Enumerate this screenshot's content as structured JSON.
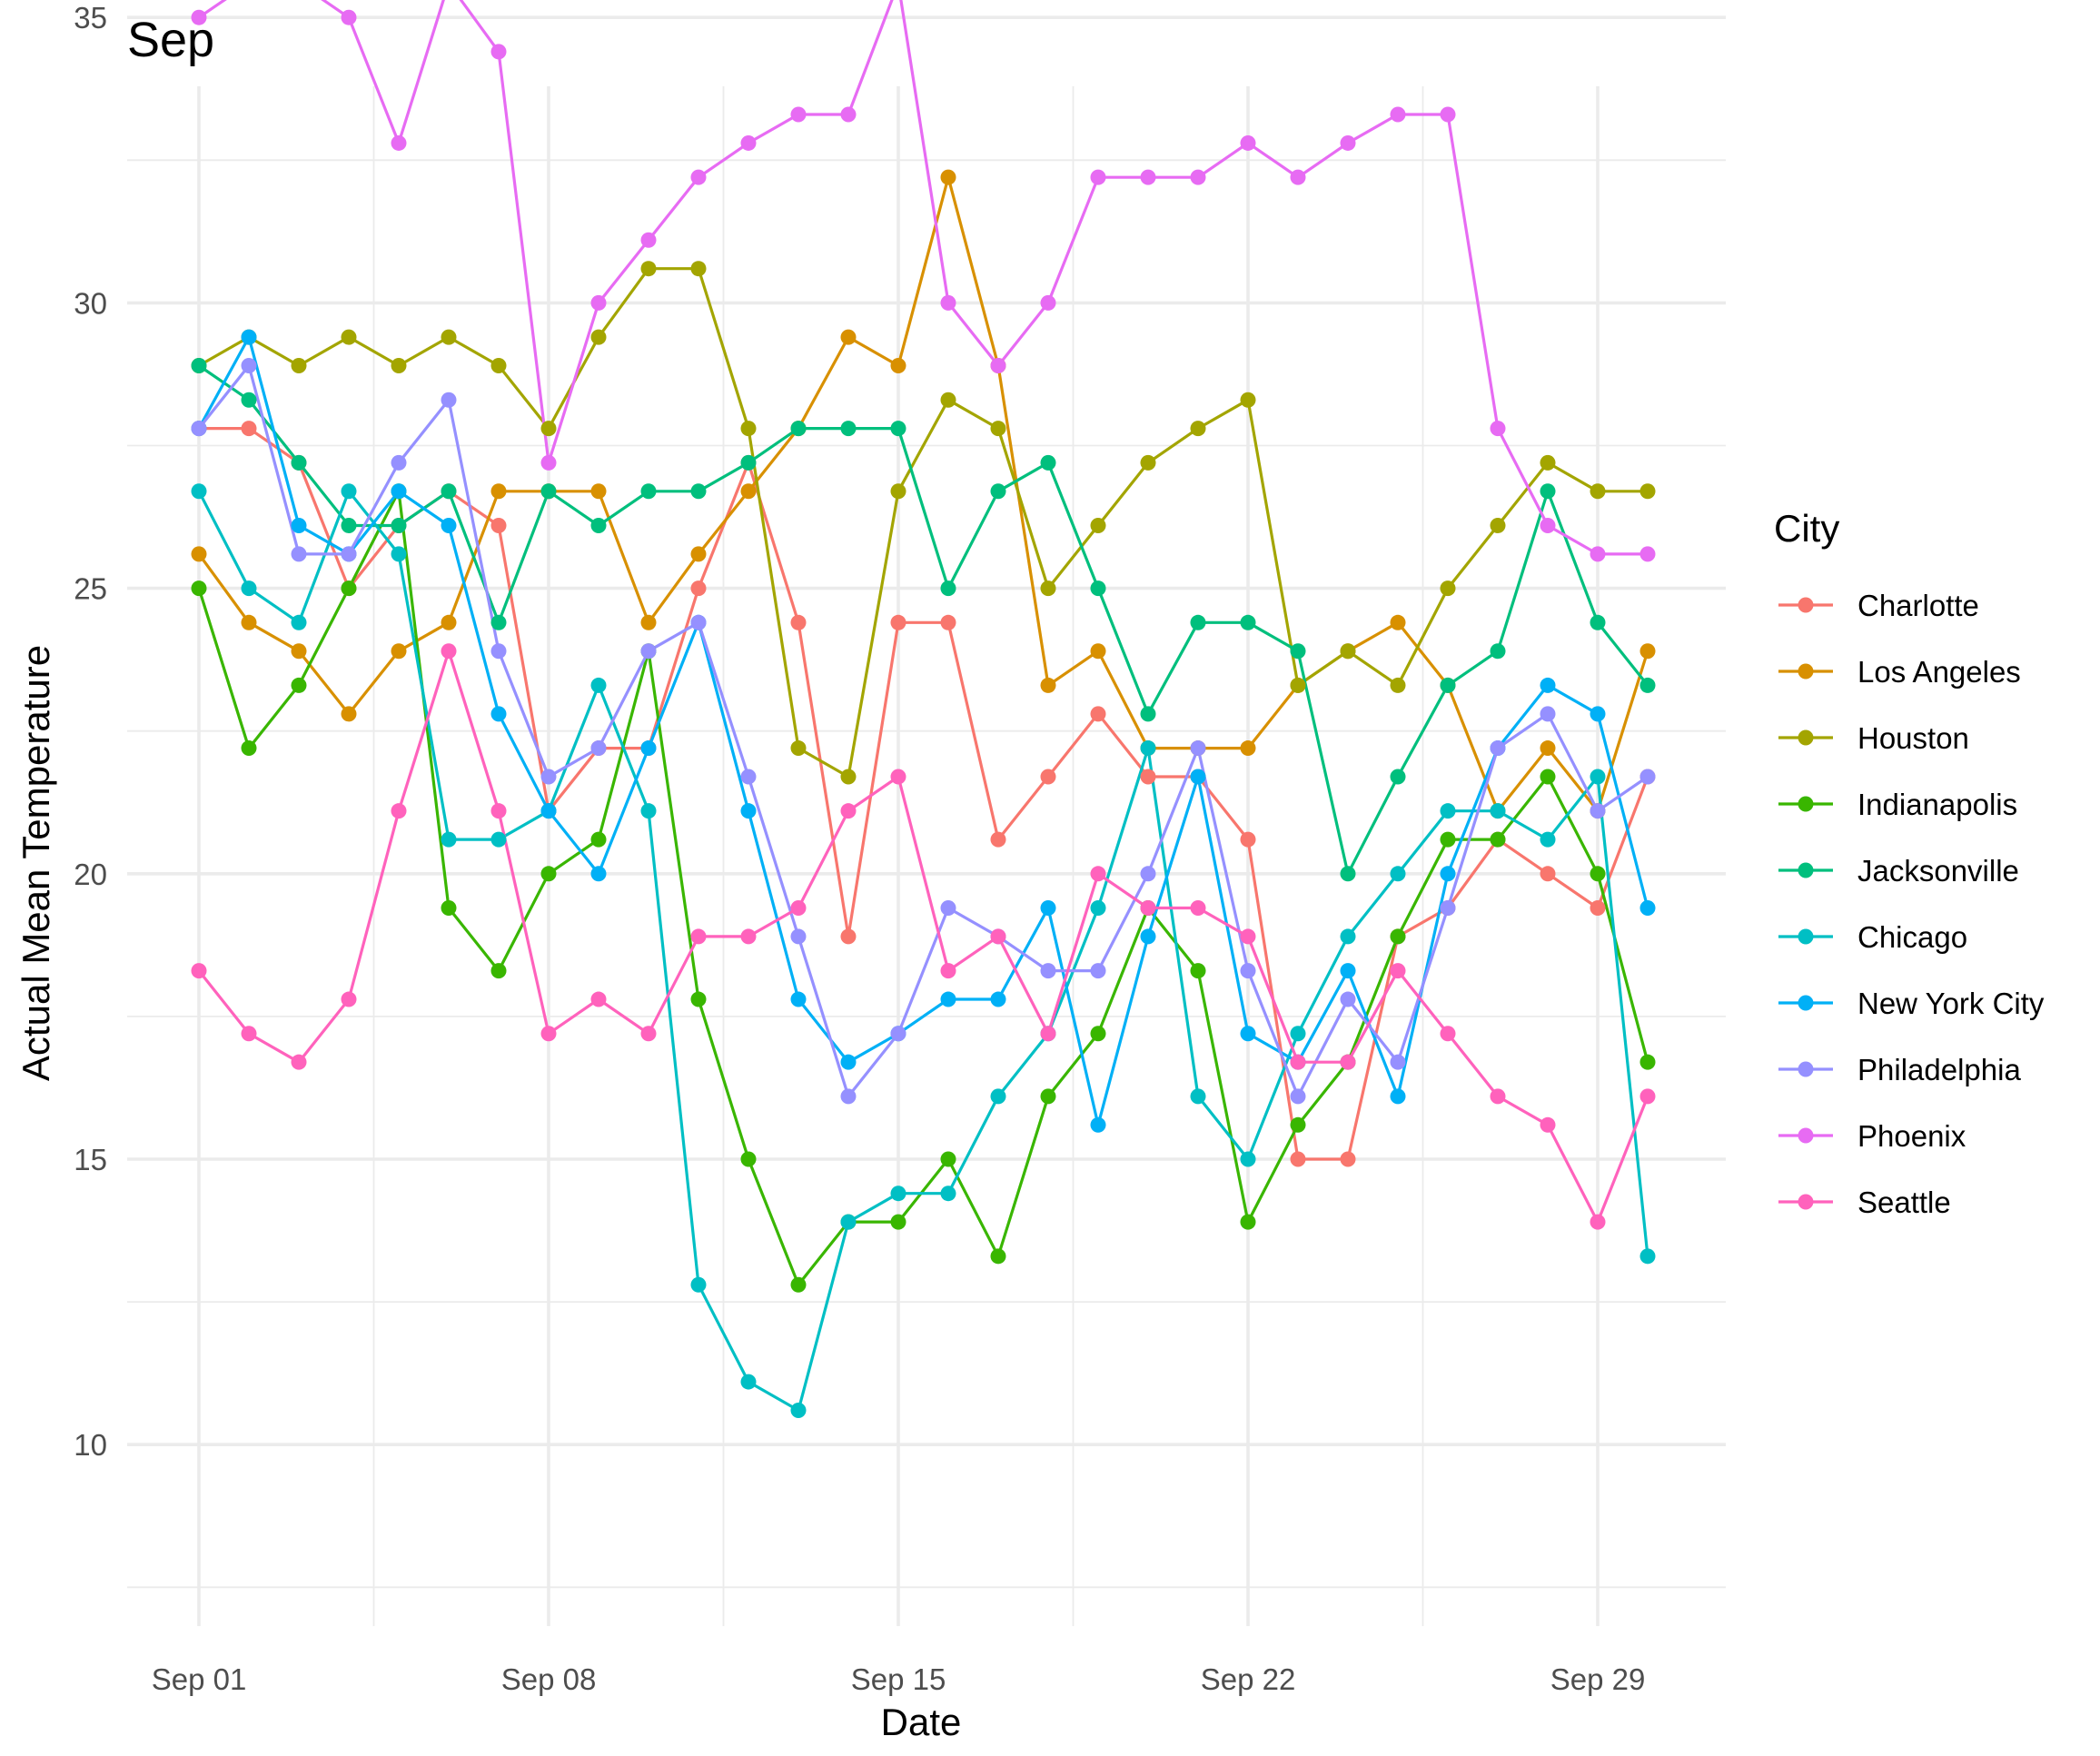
{
  "chart_data": {
    "type": "line",
    "title": "Sep",
    "xlabel": "Date",
    "ylabel": "Actual Mean Temperature",
    "x": [
      "Sep 01",
      "Sep 02",
      "Sep 03",
      "Sep 04",
      "Sep 05",
      "Sep 06",
      "Sep 07",
      "Sep 08",
      "Sep 09",
      "Sep 10",
      "Sep 11",
      "Sep 12",
      "Sep 13",
      "Sep 14",
      "Sep 15",
      "Sep 16",
      "Sep 17",
      "Sep 18",
      "Sep 19",
      "Sep 20",
      "Sep 21",
      "Sep 22",
      "Sep 23",
      "Sep 24",
      "Sep 25",
      "Sep 26",
      "Sep 27",
      "Sep 28",
      "Sep 29",
      "Sep 30"
    ],
    "x_ticks": [
      "Sep 01",
      "Sep 08",
      "Sep 15",
      "Sep 22",
      "Sep 29"
    ],
    "y_ticks": [
      10,
      15,
      20,
      25,
      30,
      35
    ],
    "ylim": [
      9.7,
      36.4
    ],
    "grid": true,
    "legend_title": "City",
    "legend_position": "right",
    "series": [
      {
        "name": "Charlotte",
        "color": "#F8766D",
        "values": [
          27.8,
          27.8,
          27.2,
          25.0,
          26.1,
          26.7,
          26.1,
          21.1,
          22.2,
          22.2,
          25.0,
          27.2,
          24.4,
          18.9,
          24.4,
          24.4,
          20.6,
          21.7,
          22.8,
          21.7,
          21.7,
          20.6,
          15.0,
          15.0,
          18.9,
          19.4,
          20.6,
          20.0,
          19.4,
          21.7
        ]
      },
      {
        "name": "Los Angeles",
        "color": "#D89000",
        "values": [
          25.6,
          24.4,
          23.9,
          22.8,
          23.9,
          24.4,
          26.7,
          26.7,
          26.7,
          24.4,
          25.6,
          26.7,
          27.8,
          29.4,
          28.9,
          32.2,
          28.9,
          23.3,
          23.9,
          22.2,
          22.2,
          22.2,
          23.3,
          23.9,
          24.4,
          23.3,
          21.1,
          22.2,
          21.1,
          23.9
        ]
      },
      {
        "name": "Houston",
        "color": "#A3A500",
        "values": [
          28.9,
          29.4,
          28.9,
          29.4,
          28.9,
          29.4,
          28.9,
          27.8,
          29.4,
          30.6,
          30.6,
          27.8,
          22.2,
          21.7,
          26.7,
          28.3,
          27.8,
          25.0,
          26.1,
          27.2,
          27.8,
          28.3,
          23.3,
          23.9,
          23.3,
          25.0,
          26.1,
          27.2,
          26.7,
          26.7
        ]
      },
      {
        "name": "Indianapolis",
        "color": "#39B600",
        "values": [
          25.0,
          22.2,
          23.3,
          25.0,
          26.7,
          19.4,
          18.3,
          20.0,
          20.6,
          23.9,
          17.8,
          15.0,
          12.8,
          13.9,
          13.9,
          15.0,
          13.3,
          16.1,
          17.2,
          19.4,
          18.3,
          13.9,
          15.6,
          16.7,
          18.9,
          20.6,
          20.6,
          21.7,
          20.0,
          16.7
        ]
      },
      {
        "name": "Jacksonville",
        "color": "#00BF7D",
        "values": [
          28.9,
          28.3,
          27.2,
          26.1,
          26.1,
          26.7,
          24.4,
          26.7,
          26.1,
          26.7,
          26.7,
          27.2,
          27.8,
          27.8,
          27.8,
          25.0,
          26.7,
          27.2,
          25.0,
          22.8,
          24.4,
          24.4,
          23.9,
          20.0,
          21.7,
          23.3,
          23.9,
          26.7,
          24.4,
          23.3
        ]
      },
      {
        "name": "Chicago",
        "color": "#00BFC4",
        "values": [
          26.7,
          25.0,
          24.4,
          26.7,
          25.6,
          20.6,
          20.6,
          21.1,
          23.3,
          21.1,
          12.8,
          11.1,
          10.6,
          13.9,
          14.4,
          14.4,
          16.1,
          17.2,
          19.4,
          22.2,
          16.1,
          15.0,
          17.2,
          18.9,
          20.0,
          21.1,
          21.1,
          20.6,
          21.7,
          13.3
        ]
      },
      {
        "name": "New York City",
        "color": "#00B0F6",
        "values": [
          27.8,
          29.4,
          26.1,
          25.6,
          26.7,
          26.1,
          22.8,
          21.1,
          20.0,
          22.2,
          24.4,
          21.1,
          17.8,
          16.7,
          17.2,
          17.8,
          17.8,
          19.4,
          15.6,
          18.9,
          21.7,
          17.2,
          16.7,
          18.3,
          16.1,
          20.0,
          22.2,
          23.3,
          22.8,
          19.4
        ]
      },
      {
        "name": "Philadelphia",
        "color": "#9590FF",
        "values": [
          27.8,
          28.9,
          25.6,
          25.6,
          27.2,
          28.3,
          23.9,
          21.7,
          22.2,
          23.9,
          24.4,
          21.7,
          18.9,
          16.1,
          17.2,
          19.4,
          18.9,
          18.3,
          18.3,
          20.0,
          22.2,
          18.3,
          16.1,
          17.8,
          16.7,
          19.4,
          22.2,
          22.8,
          21.1,
          21.7
        ]
      },
      {
        "name": "Phoenix",
        "color": "#E76BF3",
        "values": [
          35.0,
          35.6,
          35.6,
          35.0,
          32.8,
          35.6,
          34.4,
          27.2,
          30.0,
          31.1,
          32.2,
          32.8,
          33.3,
          33.3,
          35.6,
          30.0,
          28.9,
          30.0,
          32.2,
          32.2,
          32.2,
          32.8,
          32.2,
          32.8,
          33.3,
          33.3,
          27.8,
          26.1,
          25.6,
          25.6
        ]
      },
      {
        "name": "Seattle",
        "color": "#FF62BC",
        "values": [
          18.3,
          17.2,
          16.7,
          17.8,
          21.1,
          23.9,
          21.1,
          17.2,
          17.8,
          17.2,
          18.9,
          18.9,
          19.4,
          21.1,
          21.7,
          18.3,
          18.9,
          17.2,
          20.0,
          19.4,
          19.4,
          18.9,
          16.7,
          16.7,
          18.3,
          17.2,
          16.1,
          15.6,
          13.9,
          16.1
        ]
      }
    ]
  }
}
